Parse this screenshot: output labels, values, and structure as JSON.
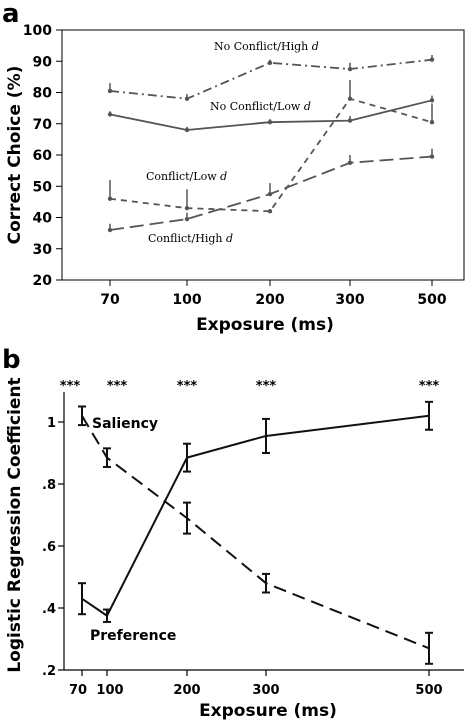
{
  "chart_data": [
    {
      "panel": "a",
      "type": "line",
      "xlabel": "Exposure (ms)",
      "ylabel": "Correct Choice (%)",
      "categories": [
        "70",
        "100",
        "200",
        "300",
        "500"
      ],
      "ylim": [
        20,
        100
      ],
      "yticks": [
        "20",
        "30",
        "40",
        "50",
        "60",
        "70",
        "80",
        "90",
        "100"
      ],
      "series": [
        {
          "name": "No Conflict/High d",
          "values": [
            80.5,
            78,
            89.5,
            87.5,
            90.5
          ],
          "err": [
            2.5,
            1.5,
            1,
            2,
            1.5
          ],
          "color": "#555555"
        },
        {
          "name": "No Conflict/Low d",
          "values": [
            73,
            68,
            70.5,
            71,
            77.5
          ],
          "err": [
            1,
            1,
            1,
            1.5,
            1.5
          ],
          "color": "#555555"
        },
        {
          "name": "Conflict/Low d",
          "values": [
            46,
            43,
            42,
            78,
            70.5
          ],
          "err": [
            6,
            6,
            0,
            6,
            6
          ],
          "color": "#555555"
        },
        {
          "name": "Conflict/High d",
          "values": [
            36,
            39.5,
            47.5,
            57.5,
            59.5
          ],
          "err": [
            2,
            2,
            3.5,
            2.5,
            2.5
          ],
          "color": "#555555"
        }
      ]
    },
    {
      "panel": "b",
      "type": "line",
      "xlabel": "Exposure (ms)",
      "ylabel": "Logistic Regression Coefficient",
      "x": [
        70,
        100,
        200,
        300,
        500
      ],
      "xticks": [
        "70",
        "100",
        "200",
        "300",
        "500"
      ],
      "ylim": [
        0.2,
        1.1
      ],
      "yticks": [
        ".2",
        ".4",
        ".6",
        ".8",
        "1"
      ],
      "significance": [
        "***",
        "***",
        "***",
        "***",
        "***"
      ],
      "series": [
        {
          "name": "Saliency",
          "values": [
            1.02,
            0.885,
            0.69,
            0.48,
            0.27
          ],
          "err": [
            0.03,
            0.03,
            0.05,
            0.03,
            0.05
          ],
          "color": "#111111"
        },
        {
          "name": "Preference",
          "values": [
            0.43,
            0.375,
            0.885,
            0.955,
            1.02
          ],
          "err": [
            0.05,
            0.02,
            0.045,
            0.055,
            0.045
          ],
          "color": "#111111"
        }
      ]
    }
  ]
}
